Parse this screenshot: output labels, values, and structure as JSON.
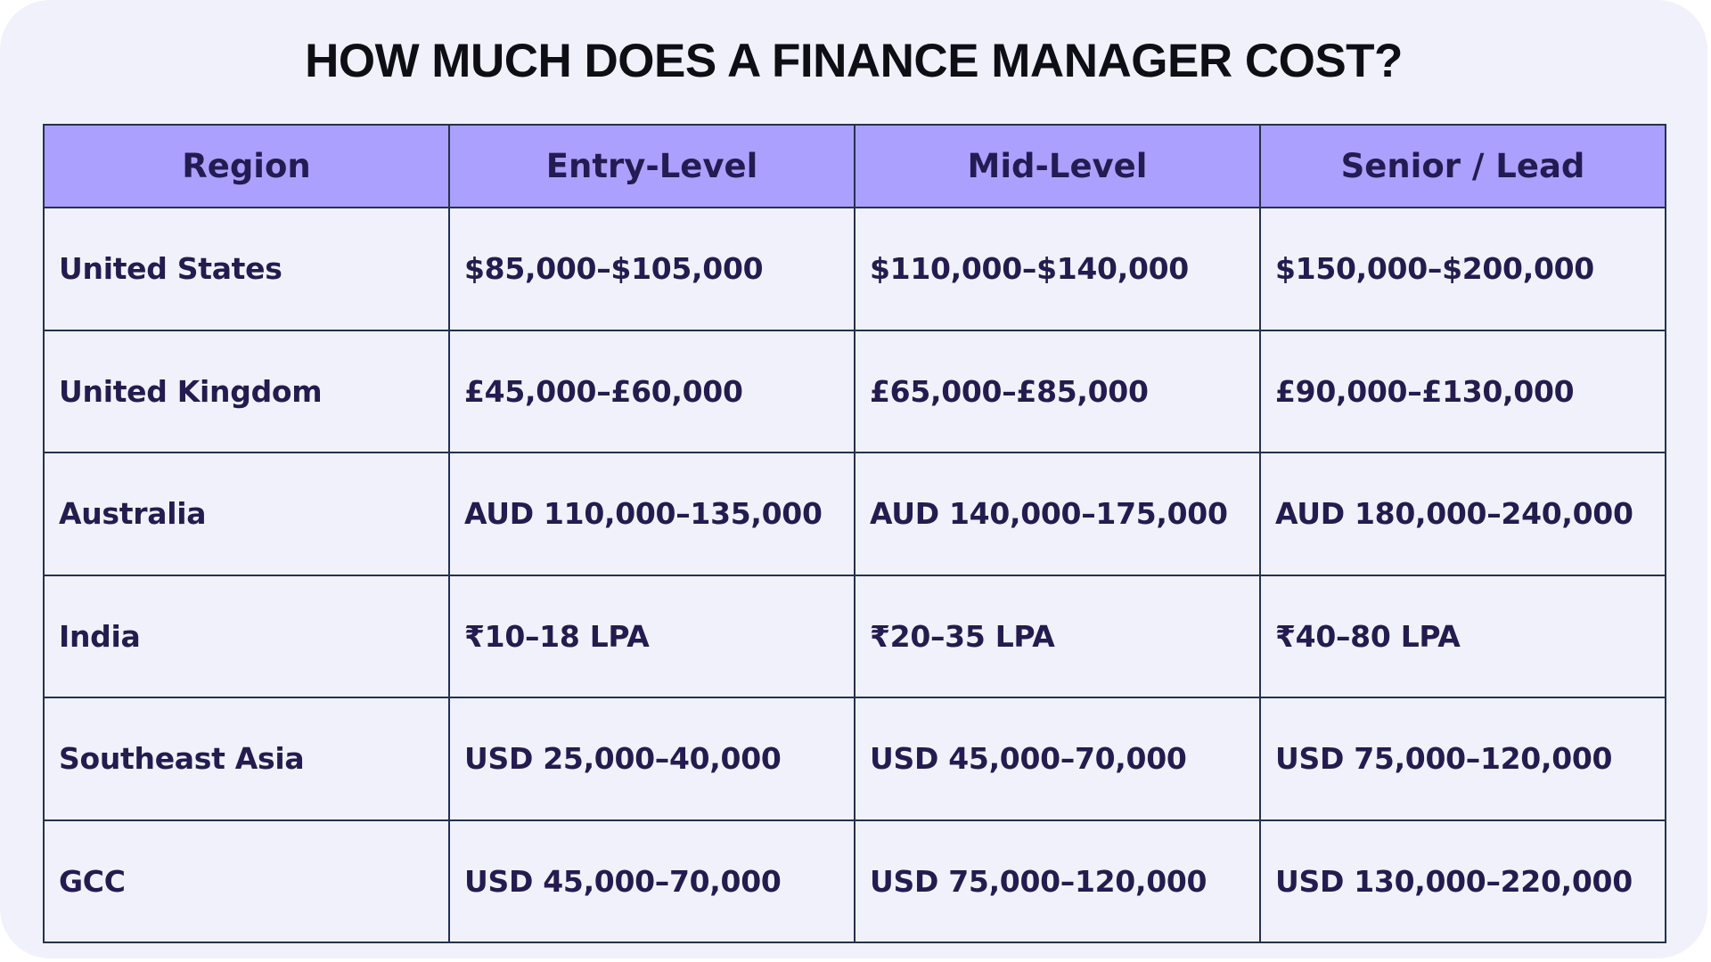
{
  "title": "HOW MUCH DOES A FINANCE MANAGER COST?",
  "table": {
    "headers": [
      "Region",
      "Entry-Level",
      "Mid-Level",
      "Senior / Lead"
    ],
    "rows": [
      [
        "United States",
        "$85,000–$105,000",
        "$110,000–$140,000",
        "$150,000–$200,000"
      ],
      [
        "United Kingdom",
        "£45,000–£60,000",
        "£65,000–£85,000",
        "£90,000–£130,000"
      ],
      [
        "Australia",
        "AUD 110,000–135,000",
        "AUD 140,000–175,000",
        "AUD 180,000–240,000"
      ],
      [
        "India",
        "₹10–18 LPA",
        "₹20–35 LPA",
        "₹40–80 LPA"
      ],
      [
        "Southeast Asia",
        "USD 25,000–40,000",
        "USD 45,000–70,000",
        "USD 75,000–120,000"
      ],
      [
        "GCC",
        "USD 45,000–70,000",
        "USD 75,000–120,000",
        "USD 130,000–220,000"
      ]
    ]
  },
  "colors": {
    "background": "#f1f1fc",
    "header_fill": "#aba0fd",
    "grid_lines": "#23324f",
    "text": "#241b4f"
  }
}
